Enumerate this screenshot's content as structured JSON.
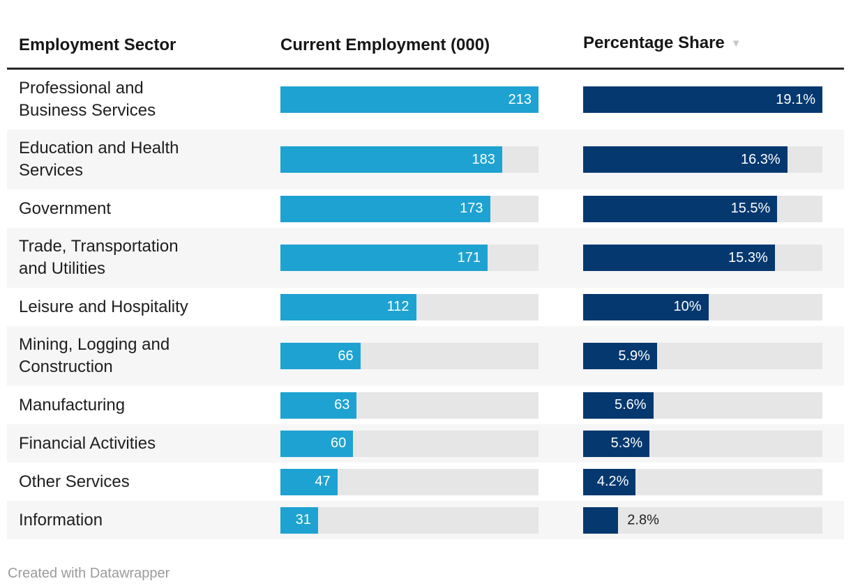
{
  "table": {
    "columns": [
      {
        "label": "Employment Sector",
        "sortable": true
      },
      {
        "label": "Current Employment (000)",
        "sortable": true
      },
      {
        "label": "Percentage Share",
        "sortable": true,
        "sort_indicator": "desc"
      }
    ],
    "rows": [
      {
        "sector": "Professional and\nBusiness Services",
        "employment": 213,
        "employment_label": "213",
        "share": 19.1,
        "share_label": "19.1%"
      },
      {
        "sector": "Education and Health\nServices",
        "employment": 183,
        "employment_label": "183",
        "share": 16.3,
        "share_label": "16.3%"
      },
      {
        "sector": "Government",
        "employment": 173,
        "employment_label": "173",
        "share": 15.5,
        "share_label": "15.5%"
      },
      {
        "sector": "Trade, Transportation\nand Utilities",
        "employment": 171,
        "employment_label": "171",
        "share": 15.3,
        "share_label": "15.3%"
      },
      {
        "sector": "Leisure and Hospitality",
        "employment": 112,
        "employment_label": "112",
        "share": 10,
        "share_label": "10%"
      },
      {
        "sector": "Mining, Logging and\nConstruction",
        "employment": 66,
        "employment_label": "66",
        "share": 5.9,
        "share_label": "5.9%"
      },
      {
        "sector": "Manufacturing",
        "employment": 63,
        "employment_label": "63",
        "share": 5.6,
        "share_label": "5.6%"
      },
      {
        "sector": "Financial Activities",
        "employment": 60,
        "employment_label": "60",
        "share": 5.3,
        "share_label": "5.3%"
      },
      {
        "sector": "Other Services",
        "employment": 47,
        "employment_label": "47",
        "share": 4.2,
        "share_label": "4.2%"
      },
      {
        "sector": "Information",
        "employment": 31,
        "employment_label": "31",
        "share": 2.8,
        "share_label": "2.8%"
      }
    ],
    "max_employment": 213,
    "max_share": 19.1
  },
  "footer": {
    "credit": "Created with Datawrapper"
  },
  "colors": {
    "employment_bar": "#1ea2d1",
    "share_bar": "#05386f",
    "bar_track": "#e6e6e6",
    "row_alt": "#f6f6f6",
    "header_rule": "#282828",
    "sort_arrow": "#c7c7c7",
    "text": "#1e1e1e",
    "footer_text": "#9b9b9b"
  },
  "chart_data": {
    "type": "table",
    "title": "",
    "categories": [
      "Professional and Business Services",
      "Education and Health Services",
      "Government",
      "Trade, Transportation and Utilities",
      "Leisure and Hospitality",
      "Mining, Logging and Construction",
      "Manufacturing",
      "Financial Activities",
      "Other Services",
      "Information"
    ],
    "series": [
      {
        "name": "Current Employment (000)",
        "values": [
          213,
          183,
          173,
          171,
          112,
          66,
          63,
          60,
          47,
          31
        ],
        "bar_scale_max": 213
      },
      {
        "name": "Percentage Share",
        "values": [
          19.1,
          16.3,
          15.5,
          15.3,
          10,
          5.9,
          5.6,
          5.3,
          4.2,
          2.8
        ],
        "bar_scale_max": 19.1
      }
    ],
    "sort_column": "Percentage Share",
    "sort_order": "descending",
    "legend_position": "none",
    "grid": false,
    "credit": "Created with Datawrapper"
  }
}
